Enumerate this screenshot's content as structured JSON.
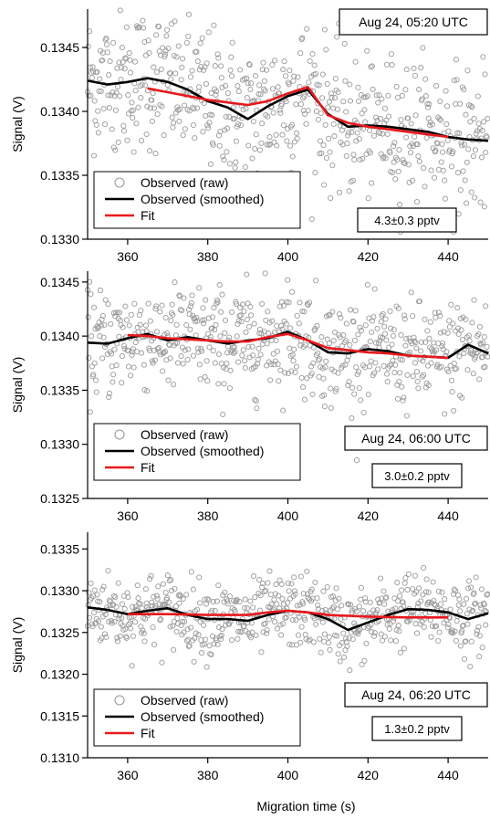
{
  "chart_data": [
    {
      "type": "scatter",
      "xlabel": "",
      "ylabel": "Signal (V)",
      "xlim": [
        350,
        450
      ],
      "ylim": [
        0.133,
        0.1348
      ],
      "x_ticks": [
        360,
        380,
        400,
        420,
        440
      ],
      "x_tick_labels": [
        "360",
        "380",
        "400",
        "420",
        "440"
      ],
      "y_ticks": [
        0.133,
        0.1335,
        0.134,
        0.1345
      ],
      "y_tick_labels": [
        "0.1330",
        "0.1335",
        "0.1340",
        "0.1345"
      ],
      "timestamp": "Aug 24, 05:20 UTC",
      "concentration": "4.3±0.3 pptv",
      "legend": {
        "raw": "Observed (raw)",
        "smoothed": "Observed (smoothed)",
        "fit": "Fit"
      },
      "raw_noise_sd": 0.00028,
      "series": [
        {
          "name": "Observed (smoothed)",
          "color": "#000000",
          "x": [
            350,
            355,
            360,
            365,
            370,
            375,
            380,
            385,
            390,
            395,
            400,
            405,
            410,
            415,
            420,
            425,
            430,
            435,
            440,
            445,
            450
          ],
          "y": [
            0.13424,
            0.13421,
            0.13423,
            0.13426,
            0.13423,
            0.13417,
            0.13408,
            0.13403,
            0.13394,
            0.13404,
            0.13412,
            0.13417,
            0.13398,
            0.13388,
            0.13389,
            0.13388,
            0.13386,
            0.13384,
            0.1338,
            0.13378,
            0.13377
          ]
        },
        {
          "name": "Fit",
          "color": "#e8191c",
          "x": [
            365,
            370,
            375,
            380,
            385,
            390,
            395,
            400,
            405,
            410,
            415,
            420,
            425,
            430,
            435,
            440
          ],
          "y": [
            0.13418,
            0.13415,
            0.13412,
            0.13409,
            0.13407,
            0.13405,
            0.13408,
            0.13414,
            0.13419,
            0.13397,
            0.13391,
            0.13388,
            0.13386,
            0.13384,
            0.13382,
            0.1338
          ]
        }
      ]
    },
    {
      "type": "scatter",
      "xlabel": "",
      "ylabel": "Signal (V)",
      "xlim": [
        350,
        450
      ],
      "ylim": [
        0.1325,
        0.1346
      ],
      "x_ticks": [
        360,
        380,
        400,
        420,
        440
      ],
      "x_tick_labels": [
        "360",
        "380",
        "400",
        "420",
        "440"
      ],
      "y_ticks": [
        0.1325,
        0.133,
        0.1335,
        0.134,
        0.1345
      ],
      "y_tick_labels": [
        "0.1325",
        "0.1330",
        "0.1335",
        "0.1340",
        "0.1345"
      ],
      "timestamp": "Aug 24, 06:00 UTC",
      "concentration": "3.0±0.2 pptv",
      "legend": {
        "raw": "Observed (raw)",
        "smoothed": "Observed (smoothed)",
        "fit": "Fit"
      },
      "raw_noise_sd": 0.00025,
      "series": [
        {
          "name": "Observed (smoothed)",
          "color": "#000000",
          "x": [
            350,
            355,
            360,
            365,
            370,
            375,
            380,
            385,
            390,
            395,
            400,
            405,
            410,
            415,
            420,
            425,
            430,
            435,
            440,
            445,
            450
          ],
          "y": [
            0.13394,
            0.13393,
            0.13398,
            0.13402,
            0.13396,
            0.13399,
            0.13396,
            0.13393,
            0.13396,
            0.13398,
            0.13404,
            0.13396,
            0.13385,
            0.13384,
            0.13388,
            0.13386,
            0.13382,
            0.13381,
            0.1338,
            0.13392,
            0.13384
          ]
        },
        {
          "name": "Fit",
          "color": "#e8191c",
          "x": [
            360,
            365,
            370,
            375,
            380,
            385,
            390,
            395,
            400,
            405,
            410,
            415,
            420,
            425,
            430,
            435,
            440
          ],
          "y": [
            0.13401,
            0.134,
            0.13398,
            0.13397,
            0.13396,
            0.13395,
            0.13395,
            0.13399,
            0.13402,
            0.13396,
            0.13389,
            0.13387,
            0.13385,
            0.13384,
            0.13382,
            0.13381,
            0.1338
          ]
        }
      ]
    },
    {
      "type": "scatter",
      "xlabel": "Migration time (s)",
      "ylabel": "Signal (V)",
      "xlim": [
        350,
        450
      ],
      "ylim": [
        0.131,
        0.1337
      ],
      "x_ticks": [
        360,
        380,
        400,
        420,
        440
      ],
      "x_tick_labels": [
        "360",
        "380",
        "400",
        "420",
        "440"
      ],
      "y_ticks": [
        0.131,
        0.1315,
        0.132,
        0.1325,
        0.133,
        0.1335
      ],
      "y_tick_labels": [
        "0.1310",
        "0.1315",
        "0.1320",
        "0.1325",
        "0.1330",
        "0.1335"
      ],
      "timestamp": "Aug 24, 06:20 UTC",
      "concentration": "1.3±0.2 pptv",
      "legend": {
        "raw": "Observed (raw)",
        "smoothed": "Observed (smoothed)",
        "fit": "Fit"
      },
      "raw_noise_sd": 0.00022,
      "series": [
        {
          "name": "Observed (smoothed)",
          "color": "#000000",
          "x": [
            350,
            355,
            360,
            365,
            370,
            375,
            380,
            385,
            390,
            395,
            400,
            405,
            410,
            415,
            420,
            425,
            430,
            435,
            440,
            445,
            450
          ],
          "y": [
            0.1328,
            0.13277,
            0.13272,
            0.13276,
            0.13279,
            0.13271,
            0.13266,
            0.13266,
            0.13264,
            0.13271,
            0.13276,
            0.13274,
            0.13266,
            0.13253,
            0.13262,
            0.13271,
            0.13278,
            0.13277,
            0.13274,
            0.13266,
            0.13273
          ]
        },
        {
          "name": "Fit",
          "color": "#e8191c",
          "x": [
            360,
            370,
            380,
            390,
            395,
            400,
            405,
            410,
            420,
            430,
            440
          ],
          "y": [
            0.13272,
            0.13272,
            0.13271,
            0.13271,
            0.13274,
            0.13276,
            0.13274,
            0.13271,
            0.13269,
            0.13268,
            0.13268
          ]
        }
      ]
    }
  ]
}
